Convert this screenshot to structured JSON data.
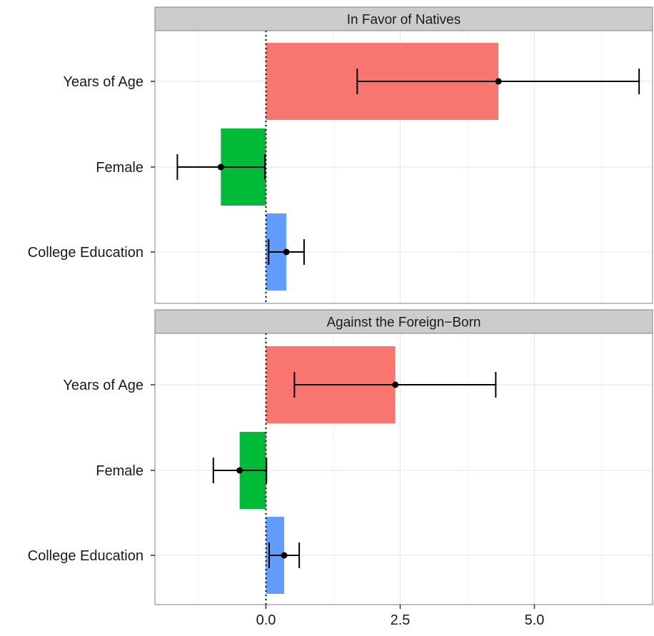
{
  "chart_data": {
    "type": "bar",
    "orientation": "horizontal",
    "grid": true,
    "xlabel": "",
    "ylabel": "",
    "xlim": [
      -2.1,
      7.3
    ],
    "xticks": [
      0.0,
      2.5,
      5.0
    ],
    "xtick_labels": [
      "0.0",
      "2.5",
      "5.0"
    ],
    "reference_line": {
      "x": 0,
      "style": "dotted"
    },
    "colors": {
      "Years of Age": "#f8766d",
      "Female": "#00ba38",
      "College Education": "#619cff"
    },
    "panels": [
      {
        "title": "In Favor of Natives",
        "categories": [
          "Years of Age",
          "Female",
          "College Education"
        ],
        "values": [
          4.33,
          -0.84,
          0.38
        ],
        "error_low": [
          1.7,
          -1.65,
          0.05
        ],
        "error_high": [
          6.95,
          -0.02,
          0.71
        ]
      },
      {
        "title": "Against the Foreign−Born",
        "categories": [
          "Years of Age",
          "Female",
          "College Education"
        ],
        "values": [
          2.41,
          -0.49,
          0.34
        ],
        "error_low": [
          0.53,
          -0.98,
          0.06
        ],
        "error_high": [
          4.28,
          0.01,
          0.62
        ]
      }
    ]
  }
}
